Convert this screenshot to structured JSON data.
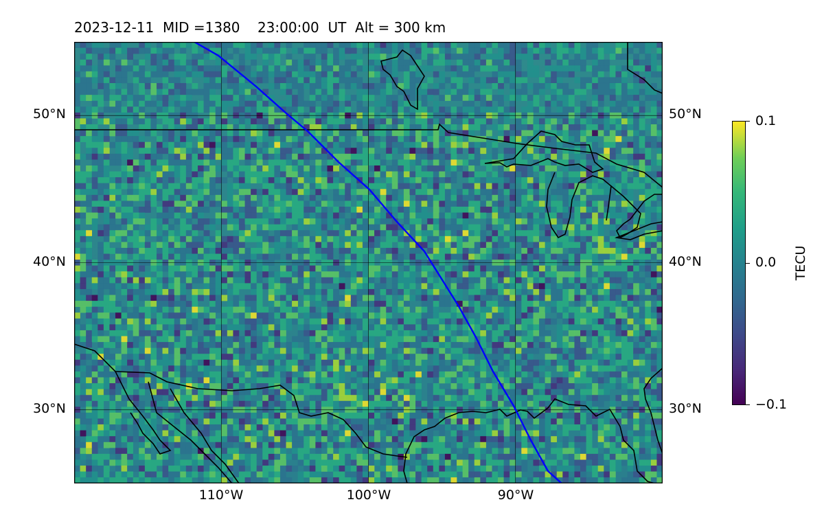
{
  "title": "2023-12-11  MID =1380    23:00:00  UT  Alt = 300 km",
  "map": {
    "lon_range": [
      -120,
      -80
    ],
    "lat_range": [
      25,
      55
    ],
    "lat_ticks": [
      {
        "value": 50,
        "label": "50°N"
      },
      {
        "value": 40,
        "label": "40°N"
      },
      {
        "value": 30,
        "label": "30°N"
      }
    ],
    "lon_ticks": [
      {
        "value": -110,
        "label": "110°W"
      },
      {
        "value": -100,
        "label": "100°W"
      },
      {
        "value": -90,
        "label": "90°W"
      }
    ],
    "grid": true,
    "field": "TEC perturbation heatmap (viridis)",
    "track_color": "#0000ff",
    "coastline_color": "#000000"
  },
  "colorbar": {
    "label": "TECU",
    "min": -0.1,
    "max": 0.1,
    "ticks": [
      {
        "value": 0.1,
        "label": "0.1"
      },
      {
        "value": 0.0,
        "label": "0.0"
      },
      {
        "value": -0.1,
        "label": "−0.1"
      }
    ],
    "colormap": "viridis"
  }
}
